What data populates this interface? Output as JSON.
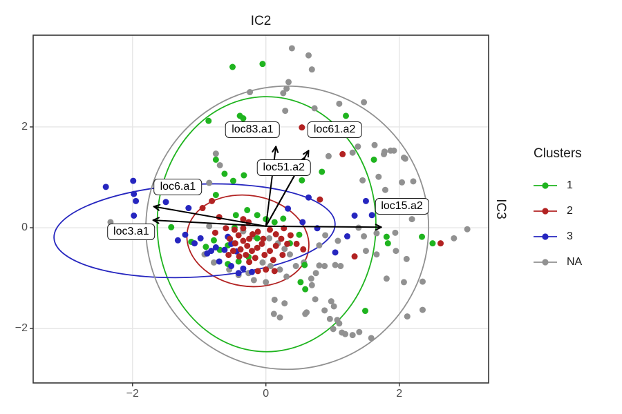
{
  "titles": {
    "top": "IC2",
    "right": "IC3"
  },
  "legend": {
    "title": "Clusters",
    "items": [
      {
        "label": "1",
        "color": "#1fb41f"
      },
      {
        "label": "2",
        "color": "#b22222"
      },
      {
        "label": "3",
        "color": "#2626bf"
      },
      {
        "label": "NA",
        "color": "#919191"
      }
    ]
  },
  "axes": {
    "x": {
      "min": -3.49,
      "max": 3.34,
      "ticks": [
        -2,
        0,
        2
      ],
      "tick_labels": [
        "−2",
        "0",
        "2"
      ]
    },
    "y": {
      "min": -3.08,
      "max": 3.82,
      "ticks": [
        -2,
        0,
        2
      ],
      "tick_labels": [
        "−2",
        "0",
        "2"
      ]
    }
  },
  "style": {
    "grid_color": "#e6e6e6",
    "panel_border_color": "#333333",
    "tick_color": "#333333",
    "arrow_color": "#000000",
    "background": "#ffffff"
  },
  "chart_data": {
    "type": "scatter",
    "title": "IC2 vs IC3 independent components with cluster ellipses and loadings",
    "xlabel_top": "IC2",
    "ylabel_right": "IC3",
    "grid": "major-only",
    "legend_position": "right",
    "origin": [
      0,
      0.03
    ],
    "clusters": [
      {
        "name": "1",
        "color": "#1fb41f",
        "points": [
          [
            -0.5,
            3.19
          ],
          [
            -0.05,
            3.25
          ],
          [
            -0.86,
            2.12
          ],
          [
            -0.75,
            1.35
          ],
          [
            -0.62,
            1.07
          ],
          [
            -0.39,
            2.22
          ],
          [
            -0.34,
            2.17
          ],
          [
            1.2,
            2.22
          ],
          [
            1.62,
            1.35
          ],
          [
            0.84,
            1.11
          ],
          [
            0.54,
            0.94
          ],
          [
            -0.33,
            1.04
          ],
          [
            -0.49,
            0.93
          ],
          [
            0.58,
            -0.74
          ],
          [
            0.52,
            -1.08
          ],
          [
            0.59,
            -1.22
          ],
          [
            1.49,
            -1.65
          ],
          [
            1.81,
            -0.18
          ],
          [
            1.83,
            -0.31
          ],
          [
            2.34,
            -0.18
          ],
          [
            2.5,
            -0.31
          ],
          [
            -0.47,
            0.0
          ],
          [
            -0.13,
            -0.21
          ],
          [
            -0.57,
            -0.35
          ],
          [
            -0.69,
            -0.44
          ],
          [
            -0.41,
            -0.67
          ],
          [
            -0.57,
            -0.72
          ],
          [
            -0.26,
            -0.58
          ],
          [
            -0.78,
            -0.25
          ],
          [
            -0.9,
            -0.38
          ],
          [
            -0.13,
            0.25
          ],
          [
            -0.28,
            0.35
          ],
          [
            0.0,
            0.17
          ],
          [
            0.13,
            0.11
          ],
          [
            0.26,
            0.18
          ],
          [
            -0.45,
            0.25
          ],
          [
            0.36,
            -0.31
          ],
          [
            0.5,
            -0.14
          ],
          [
            -1.42,
            0.01
          ],
          [
            -1.12,
            -0.28
          ],
          [
            -0.75,
            0.65
          ]
        ]
      },
      {
        "name": "2",
        "color": "#b22222",
        "points": [
          [
            1.15,
            1.46
          ],
          [
            0.54,
            1.99
          ],
          [
            2.62,
            -0.31
          ],
          [
            0.81,
            0.56
          ],
          [
            1.33,
            -0.57
          ],
          [
            -0.95,
            0.39
          ],
          [
            -0.81,
            0.53
          ],
          [
            -0.7,
            0.21
          ],
          [
            -0.76,
            -0.1
          ],
          [
            -0.6,
            -0.01
          ],
          [
            -0.47,
            -0.04
          ],
          [
            -0.34,
            -0.01
          ],
          [
            -0.41,
            -0.15
          ],
          [
            -0.54,
            -0.22
          ],
          [
            -0.46,
            -0.31
          ],
          [
            -0.34,
            -0.26
          ],
          [
            -0.25,
            -0.22
          ],
          [
            -0.2,
            -0.13
          ],
          [
            -0.12,
            -0.08
          ],
          [
            -0.28,
            -0.36
          ],
          [
            -0.38,
            -0.43
          ],
          [
            -0.49,
            -0.46
          ],
          [
            -0.56,
            -0.54
          ],
          [
            -0.4,
            -0.57
          ],
          [
            -0.3,
            -0.54
          ],
          [
            -0.21,
            -0.46
          ],
          [
            -0.13,
            -0.4
          ],
          [
            -0.06,
            -0.32
          ],
          [
            -0.16,
            -0.6
          ],
          [
            -0.25,
            -0.68
          ],
          [
            -0.04,
            -0.22
          ],
          [
            0.06,
            -0.04
          ],
          [
            0.15,
            -0.13
          ],
          [
            0.23,
            -0.22
          ],
          [
            0.32,
            -0.32
          ],
          [
            0.15,
            -0.36
          ],
          [
            0.06,
            -0.46
          ],
          [
            -0.02,
            -0.54
          ],
          [
            0.11,
            -0.64
          ],
          [
            0.25,
            -0.54
          ],
          [
            0.37,
            -0.15
          ],
          [
            0.46,
            -0.32
          ],
          [
            0.56,
            -0.43
          ],
          [
            0.27,
            -0.01
          ],
          [
            0.0,
            -0.83
          ],
          [
            -0.12,
            -0.86
          ],
          [
            0.13,
            -0.86
          ],
          [
            -0.34,
            0.17
          ],
          [
            -0.26,
            0.11
          ]
        ]
      },
      {
        "name": "3",
        "color": "#2626bf",
        "points": [
          [
            -2.4,
            0.81
          ],
          [
            -1.99,
            0.93
          ],
          [
            -1.98,
            0.67
          ],
          [
            -1.95,
            0.53
          ],
          [
            -1.98,
            0.24
          ],
          [
            -1.5,
            0.51
          ],
          [
            -1.16,
            0.39
          ],
          [
            -0.82,
            -0.46
          ],
          [
            -0.75,
            -0.39
          ],
          [
            -0.57,
            -0.18
          ],
          [
            -0.52,
            -0.32
          ],
          [
            -0.44,
            -0.47
          ],
          [
            -0.88,
            -0.51
          ],
          [
            -0.7,
            -0.67
          ],
          [
            -0.62,
            -0.44
          ],
          [
            -0.98,
            -0.21
          ],
          [
            -1.07,
            -0.31
          ],
          [
            -1.21,
            -0.14
          ],
          [
            -1.32,
            -0.25
          ],
          [
            -0.52,
            -0.76
          ],
          [
            -0.34,
            -0.81
          ],
          [
            -0.41,
            -0.9
          ],
          [
            -0.21,
            -0.88
          ],
          [
            1.04,
            -0.49
          ],
          [
            1.22,
            -0.17
          ],
          [
            1.33,
            0.24
          ],
          [
            1.59,
            0.25
          ],
          [
            0.77,
            -0.01
          ],
          [
            0.55,
            0.11
          ],
          [
            0.33,
            0.38
          ],
          [
            0.64,
            0.6
          ],
          [
            1.5,
            0.53
          ]
        ]
      },
      {
        "name": "NA",
        "color": "#919191",
        "points": [
          [
            0.39,
            3.56
          ],
          [
            0.64,
            3.42
          ],
          [
            0.69,
            3.14
          ],
          [
            0.34,
            2.89
          ],
          [
            0.31,
            2.76
          ],
          [
            0.26,
            2.67
          ],
          [
            -0.24,
            2.69
          ],
          [
            0.29,
            2.32
          ],
          [
            0.73,
            2.37
          ],
          [
            1.1,
            2.46
          ],
          [
            1.47,
            2.49
          ],
          [
            1.78,
            1.51
          ],
          [
            1.92,
            1.53
          ],
          [
            2.09,
            1.37
          ],
          [
            2.04,
            0.9
          ],
          [
            2.21,
            0.92
          ],
          [
            1.79,
            0.75
          ],
          [
            3.02,
            -0.03
          ],
          [
            0.94,
            1.42
          ],
          [
            1.3,
            1.49
          ],
          [
            1.38,
            1.61
          ],
          [
            1.63,
            1.64
          ],
          [
            1.77,
            1.46
          ],
          [
            1.87,
            1.53
          ],
          [
            2.07,
            1.39
          ],
          [
            -0.75,
            1.47
          ],
          [
            -0.69,
            1.24
          ],
          [
            -0.85,
            0.89
          ],
          [
            -2.33,
            0.11
          ],
          [
            0.8,
            -0.75
          ],
          [
            0.88,
            -0.76
          ],
          [
            1.04,
            -0.74
          ],
          [
            1.12,
            -0.76
          ],
          [
            0.75,
            -0.9
          ],
          [
            0.68,
            -1.01
          ],
          [
            0.69,
            -1.14
          ],
          [
            0.74,
            -1.42
          ],
          [
            0.98,
            -1.46
          ],
          [
            1.02,
            -1.56
          ],
          [
            0.88,
            -1.64
          ],
          [
            0.96,
            -1.81
          ],
          [
            1.07,
            -1.83
          ],
          [
            1.1,
            -1.9
          ],
          [
            1.01,
            -2.01
          ],
          [
            1.14,
            -2.08
          ],
          [
            1.19,
            -2.11
          ],
          [
            1.3,
            -2.13
          ],
          [
            1.4,
            -2.07
          ],
          [
            1.58,
            -2.19
          ],
          [
            1.81,
            -1.01
          ],
          [
            2.07,
            -1.08
          ],
          [
            2.35,
            -1.07
          ],
          [
            2.12,
            -1.76
          ],
          [
            2.35,
            -1.63
          ],
          [
            0.61,
            -1.68
          ],
          [
            1.5,
            -0.46
          ],
          [
            1.66,
            -0.53
          ],
          [
            1.95,
            -0.46
          ],
          [
            2.11,
            -0.62
          ],
          [
            0.12,
            -1.71
          ],
          [
            0.21,
            -1.78
          ],
          [
            0.59,
            -1.71
          ],
          [
            0.8,
            -0.35
          ],
          [
            0.89,
            -0.15
          ],
          [
            1.08,
            -0.26
          ],
          [
            1.39,
            0.0
          ],
          [
            1.47,
            -0.17
          ],
          [
            1.66,
            -0.11
          ],
          [
            1.94,
            -0.1
          ],
          [
            2.19,
            0.17
          ],
          [
            2.82,
            -0.21
          ],
          [
            0.13,
            -1.43
          ],
          [
            0.28,
            -1.5
          ],
          [
            -0.85,
            0.03
          ],
          [
            0.05,
            -0.21
          ],
          [
            0.18,
            -0.31
          ],
          [
            0.28,
            -0.42
          ],
          [
            -0.05,
            -0.69
          ],
          [
            0.07,
            -0.76
          ],
          [
            0.21,
            -0.83
          ],
          [
            -0.26,
            -0.9
          ],
          [
            -0.41,
            -0.94
          ],
          [
            -0.55,
            -0.83
          ],
          [
            0.36,
            -0.53
          ],
          [
            0.45,
            -0.76
          ],
          [
            -0.18,
            -1.04
          ],
          [
            0.0,
            -1.08
          ],
          [
            0.31,
            -0.97
          ],
          [
            0.57,
            -0.69
          ],
          [
            -0.34,
            -0.07
          ],
          [
            -0.18,
            -0.17
          ],
          [
            -0.49,
            -0.31
          ],
          [
            1.69,
            1.01
          ],
          [
            1.45,
            0.94
          ],
          [
            -0.78,
            -0.69
          ],
          [
            -0.92,
            -0.53
          ]
        ]
      }
    ],
    "ellipses": [
      {
        "cluster": "1",
        "color": "#1fb41f",
        "cx": 0.01,
        "cy": 0.07,
        "rx": 1.64,
        "ry": 2.53,
        "angle": 0
      },
      {
        "cluster": "2",
        "color": "#b22222",
        "cx": -0.27,
        "cy": -0.26,
        "rx": 0.92,
        "ry": 0.9,
        "angle": 9
      },
      {
        "cluster": "3",
        "color": "#2626bf",
        "cx": -1.07,
        "cy": -0.06,
        "rx": 2.11,
        "ry": 0.92,
        "angle": -3
      },
      {
        "cluster": "NA",
        "color": "#919191",
        "cx": 0.32,
        "cy": 0.0,
        "rx": 2.12,
        "ry": 2.81,
        "angle": 4
      }
    ],
    "loadings": [
      {
        "label": "loc83.a1",
        "tip": [
          0.15,
          1.61
        ],
        "label_pos": [
          -0.2,
          1.94
        ]
      },
      {
        "label": "loc61.a2",
        "tip": [
          0.64,
          1.53
        ],
        "label_pos": [
          1.03,
          1.94
        ]
      },
      {
        "label": "loc51.a2",
        "tip": [
          0.58,
          1.39
        ],
        "label_pos": [
          0.27,
          1.19
        ]
      },
      {
        "label": "loc6.a1",
        "tip": [
          -1.68,
          0.42
        ],
        "label_pos": [
          -1.32,
          0.81
        ]
      },
      {
        "label": "loc3.a1",
        "tip": [
          -1.69,
          0.15
        ],
        "label_pos": [
          -2.02,
          -0.08
        ]
      },
      {
        "label": "loc15.a2",
        "tip": [
          1.73,
          0.01
        ],
        "label_pos": [
          2.04,
          0.42
        ]
      }
    ]
  }
}
